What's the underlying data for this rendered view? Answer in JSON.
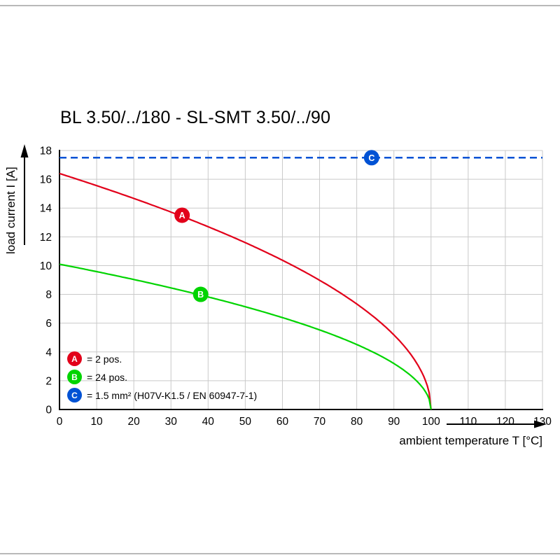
{
  "page": {
    "title": "BL 3.50/../180 - SL-SMT 3.50/../90"
  },
  "chart_data": {
    "type": "line",
    "title": "BL 3.50/../180 - SL-SMT 3.50/../90",
    "xlabel": "ambient temperature T [°C]",
    "ylabel": "load current I [A]",
    "xlim": [
      0,
      130
    ],
    "ylim": [
      0,
      18
    ],
    "xticks": [
      0,
      10,
      20,
      30,
      40,
      50,
      60,
      70,
      80,
      90,
      100,
      110,
      120,
      130
    ],
    "yticks": [
      0,
      2,
      4,
      6,
      8,
      10,
      12,
      14,
      16,
      18
    ],
    "grid": true,
    "grid_color": "#c9c9c9",
    "axis_color": "#000000",
    "legend_position": "bottom-left-inside",
    "series": [
      {
        "name": "A",
        "legend_label": "= 2 pos.",
        "color": "#e2001a",
        "line_style": "solid",
        "model": "derating_sqrt",
        "i0": 16.4,
        "t_end": 100,
        "marker_at": {
          "T": 33,
          "I": 13.5
        },
        "points": [
          [
            0,
            16.4
          ],
          [
            10,
            15.6
          ],
          [
            20,
            14.7
          ],
          [
            30,
            13.7
          ],
          [
            40,
            12.7
          ],
          [
            50,
            11.6
          ],
          [
            60,
            10.4
          ],
          [
            70,
            9.0
          ],
          [
            80,
            7.3
          ],
          [
            90,
            5.2
          ],
          [
            95,
            3.7
          ],
          [
            100,
            0
          ]
        ]
      },
      {
        "name": "B",
        "legend_label": "= 24 pos.",
        "color": "#00d400",
        "line_style": "solid",
        "model": "derating_sqrt",
        "i0": 10.1,
        "t_end": 100,
        "marker_at": {
          "T": 38,
          "I": 8.0
        },
        "points": [
          [
            0,
            10.1
          ],
          [
            10,
            9.6
          ],
          [
            20,
            9.0
          ],
          [
            30,
            8.5
          ],
          [
            40,
            7.8
          ],
          [
            50,
            7.1
          ],
          [
            60,
            6.4
          ],
          [
            70,
            5.5
          ],
          [
            80,
            4.5
          ],
          [
            90,
            3.2
          ],
          [
            95,
            2.3
          ],
          [
            100,
            0
          ]
        ]
      },
      {
        "name": "C",
        "legend_label": "= 1.5 mm² (H07V-K1.5 / EN 60947-7-1)",
        "color": "#0052d4",
        "line_style": "dashed",
        "model": "constant",
        "value": 17.5,
        "t_range": [
          0,
          130
        ],
        "marker_at": {
          "T": 84,
          "I": 17.5
        }
      }
    ]
  }
}
